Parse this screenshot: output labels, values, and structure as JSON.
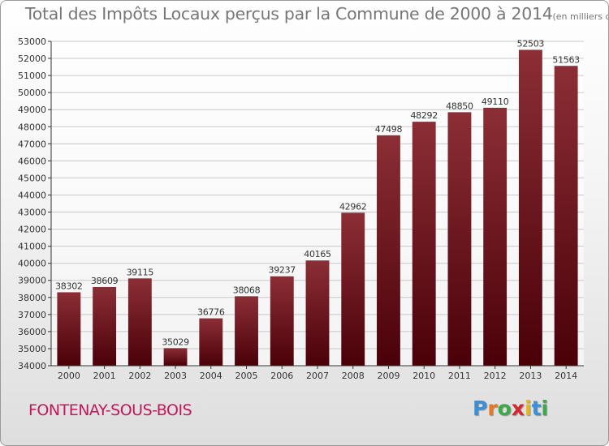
{
  "header": {
    "title": "Total des Impôts Locaux perçus par la Commune de 2000 à 2014",
    "unit": "(en milliers d'€)"
  },
  "footer": {
    "commune": "FONTENAY-SOUS-BOIS",
    "logo_letters": [
      "P",
      "r",
      "o",
      "x",
      "i",
      "t",
      "i"
    ],
    "logo_colors": [
      "#3a8fd6",
      "#e8771e",
      "#3ca94a",
      "#d6262e",
      "#e8b71e",
      "#3a8fd6",
      "#3ca94a"
    ]
  },
  "chart_data": {
    "type": "bar",
    "title": "Total des Impôts Locaux perçus par la Commune de 2000 à 2014",
    "xlabel": "",
    "ylabel": "",
    "categories": [
      "2000",
      "2001",
      "2002",
      "2003",
      "2004",
      "2005",
      "2006",
      "2007",
      "2008",
      "2009",
      "2010",
      "2011",
      "2012",
      "2013",
      "2014"
    ],
    "values": [
      38302,
      38609,
      39115,
      35029,
      36776,
      38068,
      39237,
      40165,
      42962,
      47498,
      48292,
      48850,
      49110,
      52503,
      51563
    ],
    "ylim": [
      34000,
      53000
    ],
    "yticks": [
      34000,
      35000,
      36000,
      37000,
      38000,
      39000,
      40000,
      41000,
      42000,
      43000,
      44000,
      45000,
      46000,
      47000,
      48000,
      49000,
      50000,
      51000,
      52000,
      53000
    ],
    "grid": true,
    "colors": {
      "bar_top": "#8c2e36",
      "bar_bottom": "#4a0008",
      "grid": "#c8c8c8"
    }
  }
}
